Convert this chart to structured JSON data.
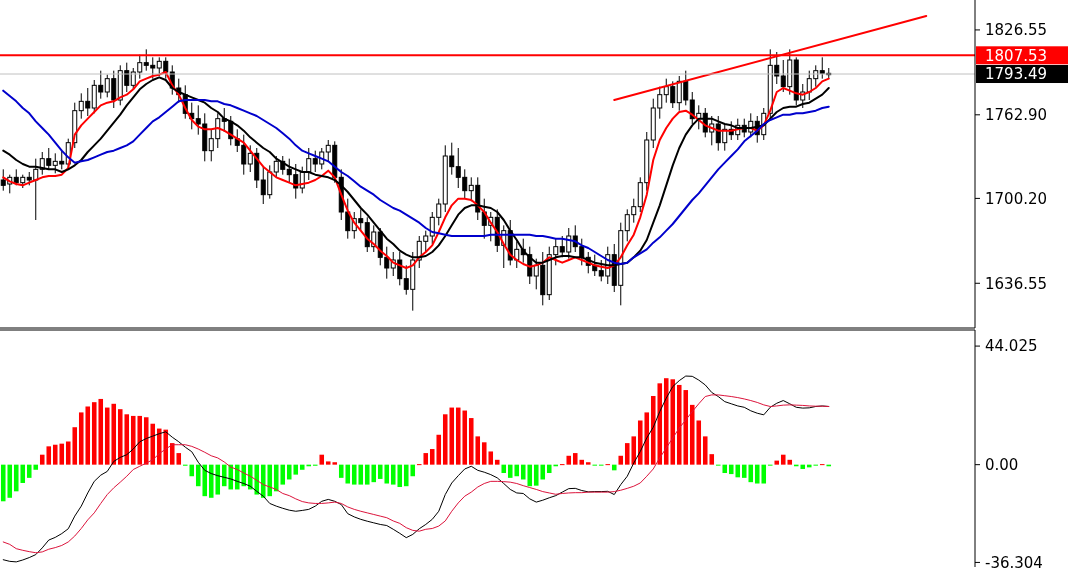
{
  "chart_data": [
    {
      "type": "candlestick",
      "categories": [
        null,
        null,
        null,
        null,
        null,
        null,
        null,
        null,
        null,
        null,
        null,
        null,
        null,
        null,
        null,
        null,
        null,
        null,
        null,
        null,
        null,
        null,
        null,
        null,
        null,
        null,
        null,
        null,
        null,
        null,
        null,
        null,
        null,
        null,
        null,
        null,
        null,
        null,
        null,
        null,
        null,
        null,
        null,
        null,
        null,
        null,
        null,
        null,
        null,
        null,
        null,
        null,
        null,
        null,
        null,
        null,
        null,
        null,
        null,
        null,
        null,
        null,
        null,
        null,
        null,
        null,
        null,
        null,
        null,
        null,
        null,
        null,
        null,
        null,
        null,
        null,
        null,
        null,
        null,
        null,
        null,
        null,
        null,
        null,
        null,
        null,
        null,
        null,
        null,
        null,
        null,
        null,
        null,
        null,
        null,
        null,
        null,
        null,
        null,
        null,
        null,
        null,
        null,
        null,
        null,
        null,
        null,
        null,
        null,
        null,
        null,
        null,
        null,
        null,
        null,
        null,
        null,
        null,
        null,
        null,
        null,
        null,
        null,
        null,
        null,
        null,
        null,
        null,
        null,
        null,
        null,
        null,
        null,
        null,
        null,
        null,
        null,
        null,
        null,
        null,
        null,
        null,
        null,
        null,
        null,
        null,
        null,
        null,
        null,
        null
      ],
      "ohlc": [
        [
          1714,
          1722,
          1706,
          1710
        ],
        [
          1711,
          1718,
          1704,
          1716
        ],
        [
          1716,
          1722,
          1710,
          1712
        ],
        [
          1712,
          1718,
          1708,
          1716
        ],
        [
          1716,
          1720,
          1710,
          1714
        ],
        [
          1714,
          1730,
          1684,
          1722
        ],
        [
          1722,
          1735,
          1718,
          1730
        ],
        [
          1730,
          1738,
          1722,
          1725
        ],
        [
          1725,
          1734,
          1719,
          1728
        ],
        [
          1728,
          1736,
          1722,
          1726
        ],
        [
          1726,
          1745,
          1722,
          1742
        ],
        [
          1742,
          1772,
          1738,
          1766
        ],
        [
          1766,
          1779,
          1760,
          1773
        ],
        [
          1773,
          1783,
          1762,
          1768
        ],
        [
          1768,
          1789,
          1764,
          1785
        ],
        [
          1785,
          1796,
          1775,
          1780
        ],
        [
          1780,
          1793,
          1776,
          1790
        ],
        [
          1790,
          1796,
          1768,
          1774
        ],
        [
          1774,
          1800,
          1770,
          1796
        ],
        [
          1796,
          1802,
          1780,
          1785
        ],
        [
          1785,
          1798,
          1782,
          1795
        ],
        [
          1795,
          1808,
          1790,
          1802
        ],
        [
          1802,
          1812,
          1796,
          1800
        ],
        [
          1800,
          1806,
          1790,
          1798
        ],
        [
          1798,
          1806,
          1792,
          1803
        ],
        [
          1803,
          1806,
          1790,
          1795
        ],
        [
          1795,
          1800,
          1778,
          1783
        ],
        [
          1783,
          1790,
          1772,
          1778
        ],
        [
          1778,
          1785,
          1760,
          1764
        ],
        [
          1764,
          1772,
          1752,
          1760
        ],
        [
          1760,
          1770,
          1748,
          1756
        ],
        [
          1756,
          1764,
          1728,
          1736
        ],
        [
          1736,
          1752,
          1728,
          1745
        ],
        [
          1745,
          1764,
          1738,
          1760
        ],
        [
          1760,
          1768,
          1750,
          1758
        ],
        [
          1758,
          1762,
          1740,
          1745
        ],
        [
          1745,
          1752,
          1735,
          1740
        ],
        [
          1740,
          1748,
          1718,
          1726
        ],
        [
          1726,
          1740,
          1720,
          1734
        ],
        [
          1734,
          1738,
          1708,
          1714
        ],
        [
          1714,
          1724,
          1696,
          1703
        ],
        [
          1703,
          1725,
          1700,
          1720
        ],
        [
          1720,
          1732,
          1716,
          1728
        ],
        [
          1728,
          1732,
          1718,
          1722
        ],
        [
          1722,
          1730,
          1712,
          1718
        ],
        [
          1718,
          1726,
          1700,
          1708
        ],
        [
          1708,
          1724,
          1704,
          1720
        ],
        [
          1720,
          1738,
          1714,
          1730
        ],
        [
          1730,
          1736,
          1720,
          1726
        ],
        [
          1726,
          1738,
          1722,
          1735
        ],
        [
          1735,
          1744,
          1728,
          1740
        ],
        [
          1740,
          1743,
          1712,
          1716
        ],
        [
          1716,
          1722,
          1684,
          1690
        ],
        [
          1690,
          1700,
          1670,
          1676
        ],
        [
          1676,
          1690,
          1670,
          1685
        ],
        [
          1685,
          1692,
          1676,
          1682
        ],
        [
          1682,
          1686,
          1660,
          1664
        ],
        [
          1664,
          1680,
          1660,
          1675
        ],
        [
          1675,
          1678,
          1650,
          1656
        ],
        [
          1656,
          1664,
          1640,
          1648
        ],
        [
          1648,
          1660,
          1642,
          1654
        ],
        [
          1654,
          1660,
          1635,
          1640
        ],
        [
          1640,
          1650,
          1628,
          1632
        ],
        [
          1632,
          1660,
          1616,
          1654
        ],
        [
          1654,
          1672,
          1648,
          1668
        ],
        [
          1668,
          1676,
          1660,
          1672
        ],
        [
          1672,
          1690,
          1666,
          1686
        ],
        [
          1686,
          1700,
          1680,
          1696
        ],
        [
          1696,
          1740,
          1690,
          1732
        ],
        [
          1732,
          1742,
          1718,
          1724
        ],
        [
          1724,
          1738,
          1708,
          1716
        ],
        [
          1716,
          1722,
          1700,
          1706
        ],
        [
          1706,
          1716,
          1698,
          1710
        ],
        [
          1710,
          1716,
          1684,
          1690
        ],
        [
          1690,
          1700,
          1670,
          1680
        ],
        [
          1680,
          1690,
          1668,
          1686
        ],
        [
          1686,
          1692,
          1660,
          1665
        ],
        [
          1665,
          1680,
          1648,
          1676
        ],
        [
          1676,
          1684,
          1650,
          1654
        ],
        [
          1654,
          1668,
          1648,
          1662
        ],
        [
          1662,
          1670,
          1652,
          1658
        ],
        [
          1658,
          1664,
          1636,
          1642
        ],
        [
          1642,
          1655,
          1632,
          1650
        ],
        [
          1650,
          1660,
          1620,
          1628
        ],
        [
          1628,
          1664,
          1624,
          1658
        ],
        [
          1658,
          1670,
          1650,
          1664
        ],
        [
          1664,
          1672,
          1656,
          1660
        ],
        [
          1660,
          1678,
          1655,
          1672
        ],
        [
          1672,
          1680,
          1660,
          1664
        ],
        [
          1664,
          1670,
          1650,
          1656
        ],
        [
          1656,
          1660,
          1644,
          1650
        ],
        [
          1650,
          1658,
          1642,
          1646
        ],
        [
          1646,
          1654,
          1638,
          1642
        ],
        [
          1642,
          1664,
          1636,
          1658
        ],
        [
          1658,
          1666,
          1630,
          1635
        ],
        [
          1635,
          1682,
          1620,
          1676
        ],
        [
          1676,
          1692,
          1668,
          1688
        ],
        [
          1688,
          1700,
          1682,
          1694
        ],
        [
          1694,
          1716,
          1690,
          1712
        ],
        [
          1712,
          1750,
          1706,
          1744
        ],
        [
          1744,
          1775,
          1738,
          1768
        ],
        [
          1768,
          1784,
          1760,
          1778
        ],
        [
          1778,
          1790,
          1772,
          1784
        ],
        [
          1784,
          1788,
          1768,
          1772
        ],
        [
          1772,
          1792,
          1766,
          1788
        ],
        [
          1788,
          1796,
          1770,
          1774
        ],
        [
          1774,
          1780,
          1756,
          1760
        ],
        [
          1760,
          1770,
          1752,
          1764
        ],
        [
          1764,
          1768,
          1746,
          1750
        ],
        [
          1750,
          1762,
          1740,
          1756
        ],
        [
          1756,
          1762,
          1736,
          1742
        ],
        [
          1742,
          1756,
          1736,
          1752
        ],
        [
          1752,
          1758,
          1744,
          1748
        ],
        [
          1748,
          1760,
          1744,
          1755
        ],
        [
          1755,
          1760,
          1746,
          1750
        ],
        [
          1750,
          1764,
          1746,
          1758
        ],
        [
          1758,
          1762,
          1742,
          1748
        ],
        [
          1748,
          1768,
          1744,
          1764
        ],
        [
          1764,
          1812,
          1760,
          1800
        ],
        [
          1800,
          1810,
          1786,
          1792
        ],
        [
          1792,
          1804,
          1780,
          1784
        ],
        [
          1784,
          1812,
          1778,
          1804
        ],
        [
          1804,
          1806,
          1770,
          1774
        ],
        [
          1774,
          1786,
          1768,
          1780
        ],
        [
          1780,
          1796,
          1774,
          1790
        ],
        [
          1790,
          1800,
          1784,
          1796
        ],
        [
          1796,
          1806,
          1790,
          1794
        ],
        [
          1794,
          1798,
          1790,
          1793
        ],
        null,
        null,
        null,
        null,
        null,
        null,
        null,
        null,
        null,
        null,
        null,
        null,
        null,
        null,
        null,
        null,
        null,
        null,
        null,
        null,
        null,
        null
      ],
      "series": [
        {
          "type": "line",
          "color": "#ff0000",
          "values": [
            1716,
            1713,
            1711,
            1710,
            1712,
            1714,
            1716,
            1717,
            1717,
            1718,
            1723,
            1748,
            1755,
            1760,
            1765,
            1770,
            1772,
            1773,
            1776,
            1778,
            1782,
            1788,
            1790,
            1792,
            1793,
            1795,
            1785,
            1778,
            1768,
            1759,
            1754,
            1752,
            1752,
            1753,
            1751,
            1748,
            1745,
            1742,
            1736,
            1730,
            1724,
            1720,
            1716,
            1714,
            1712,
            1710,
            1711,
            1712,
            1714,
            1717,
            1721,
            1716,
            1703,
            1691,
            1682,
            1676,
            1670,
            1666,
            1661,
            1657,
            1652,
            1650,
            1648,
            1650,
            1656,
            1660,
            1665,
            1675,
            1686,
            1695,
            1700,
            1700,
            1699,
            1695,
            1690,
            1682,
            1675,
            1666,
            1658,
            1654,
            1651,
            1649,
            1650,
            1652,
            1656,
            1654,
            1652,
            1654,
            1656,
            1654,
            1652,
            1650,
            1649,
            1648,
            1650,
            1656,
            1665,
            1673,
            1686,
            1703,
            1729,
            1744,
            1753,
            1760,
            1765,
            1766,
            1763,
            1759,
            1755,
            1753,
            1751,
            1751,
            1751,
            1752,
            1753,
            1753,
            1751,
            1755,
            1766,
            1780,
            1783,
            1781,
            1779,
            1778,
            1780,
            1783,
            1788,
            1790,
            null,
            null,
            null,
            null,
            null,
            null,
            null,
            null,
            null,
            null,
            null,
            null,
            null,
            null,
            null,
            null,
            null,
            null,
            null,
            null,
            null,
            null
          ]
        },
        {
          "type": "line",
          "color": "#000000",
          "values": [
            1736,
            1733,
            1729,
            1726,
            1724,
            1724,
            1723,
            1722,
            1722,
            1720,
            1722,
            1725,
            1729,
            1735,
            1740,
            1745,
            1751,
            1757,
            1763,
            1770,
            1776,
            1782,
            1786,
            1789,
            1791,
            1789,
            1783,
            1780,
            1778,
            1776,
            1774,
            1772,
            1768,
            1765,
            1760,
            1758,
            1755,
            1751,
            1746,
            1742,
            1738,
            1735,
            1730,
            1727,
            1724,
            1722,
            1720,
            1720,
            1718,
            1717,
            1716,
            1714,
            1710,
            1705,
            1699,
            1693,
            1688,
            1682,
            1676,
            1670,
            1666,
            1661,
            1658,
            1656,
            1656,
            1657,
            1660,
            1665,
            1672,
            1680,
            1688,
            1693,
            1695,
            1695,
            1694,
            1693,
            1690,
            1684,
            1676,
            1669,
            1661,
            1656,
            1652,
            1652,
            1654,
            1656,
            1657,
            1657,
            1656,
            1656,
            1654,
            1652,
            1651,
            1650,
            1650,
            1651,
            1652,
            1656,
            1661,
            1669,
            1682,
            1695,
            1710,
            1725,
            1738,
            1748,
            1755,
            1760,
            1760,
            1760,
            1758,
            1756,
            1755,
            1753,
            1753,
            1753,
            1754,
            1755,
            1760,
            1765,
            1768,
            1769,
            1769,
            1771,
            1772,
            1775,
            1778,
            1783,
            null,
            null,
            null,
            null,
            null,
            null,
            null,
            null,
            null,
            null,
            null,
            null,
            null,
            null,
            null,
            null,
            null,
            null,
            null,
            null,
            null,
            null
          ]
        },
        {
          "type": "line",
          "color": "#0000cc",
          "values": [
            1781,
            1777,
            1773,
            1768,
            1764,
            1758,
            1753,
            1748,
            1742,
            1736,
            1731,
            1727,
            1728,
            1729,
            1731,
            1733,
            1735,
            1736,
            1738,
            1740,
            1743,
            1748,
            1753,
            1758,
            1761,
            1765,
            1769,
            1773,
            1774,
            1774,
            1774,
            1774,
            1773,
            1773,
            1771,
            1770,
            1768,
            1766,
            1764,
            1762,
            1759,
            1756,
            1753,
            1749,
            1745,
            1740,
            1736,
            1734,
            1732,
            1730,
            1728,
            1724,
            1720,
            1717,
            1713,
            1709,
            1706,
            1703,
            1699,
            1696,
            1693,
            1691,
            1688,
            1685,
            1682,
            1678,
            1675,
            1674,
            1673,
            1672,
            1672,
            1672,
            1672,
            1672,
            1672,
            1673,
            1673,
            1673,
            1673,
            1673,
            1673,
            1673,
            1672,
            1672,
            1671,
            1670,
            1670,
            1669,
            1668,
            1665,
            1663,
            1660,
            1657,
            1654,
            1652,
            1651,
            1652,
            1656,
            1659,
            1662,
            1667,
            1671,
            1676,
            1681,
            1687,
            1693,
            1699,
            1704,
            1710,
            1716,
            1722,
            1727,
            1732,
            1737,
            1743,
            1747,
            1751,
            1756,
            1759,
            1761,
            1763,
            1763,
            1764,
            1764,
            1765,
            1766,
            1768,
            1769,
            null,
            null,
            null,
            null,
            null,
            null,
            null,
            null,
            null,
            null,
            null,
            null,
            null,
            null,
            null,
            null,
            null,
            null,
            null,
            null,
            null,
            null
          ]
        },
        {
          "type": "line",
          "color": "#ff0000",
          "values": [
            null,
            null,
            null,
            null,
            null,
            null,
            null,
            null,
            null,
            null,
            null,
            null,
            null,
            null,
            null,
            null,
            null,
            null,
            null,
            null,
            null,
            null,
            null,
            null,
            null,
            null,
            null,
            null,
            null,
            null,
            null,
            null,
            null,
            null,
            null,
            null,
            null,
            null,
            null,
            null,
            null,
            null,
            null,
            null,
            null,
            null,
            null,
            null,
            null,
            null,
            null,
            null,
            null,
            null,
            null,
            null,
            null,
            null,
            null,
            null,
            null,
            null,
            null,
            null,
            null,
            null,
            null,
            null,
            null,
            null,
            null,
            null,
            null,
            null,
            null,
            null,
            null,
            null,
            null,
            null,
            null,
            null,
            null,
            null,
            null,
            null,
            null,
            null,
            null,
            null,
            null,
            null,
            null,
            null,
            1774,
            null,
            null,
            null,
            null,
            null,
            null,
            null,
            null,
            null,
            null,
            null,
            null,
            null,
            null,
            null,
            null,
            null,
            null,
            null,
            null,
            null,
            null,
            null,
            null,
            null,
            null,
            null,
            null,
            null,
            null,
            null,
            null,
            null,
            null,
            null,
            null,
            null,
            null,
            null,
            null,
            null,
            null,
            null,
            null,
            null,
            null,
            null,
            1837,
            null,
            null,
            null,
            null,
            null,
            null,
            null
          ]
        }
      ],
      "ylim": [
        1603,
        1849
      ],
      "yticks": [
        1826.55,
        {
          "value": 1762.9,
          "label": "1762.90"
        },
        {
          "value": 1700.2,
          "label": "1700.20"
        },
        1636.55
      ],
      "tick_labels": "y",
      "ref_lines": [
        {
          "axis": "y",
          "value": 1807.53,
          "label": "1807.53",
          "color": "#ff0000"
        },
        {
          "axis": "y",
          "value": 1793.49,
          "label": "1793.49",
          "color": "#c0c0c0"
        }
      ]
    },
    {
      "type": "bar",
      "categories": [
        null,
        null,
        null,
        null,
        null,
        null,
        null,
        null,
        null,
        null,
        null,
        null,
        null,
        null,
        null,
        null,
        null,
        null,
        null,
        null,
        null,
        null,
        null,
        null,
        null,
        null,
        null,
        null,
        null,
        null,
        null,
        null,
        null,
        null,
        null,
        null,
        null,
        null,
        null,
        null,
        null,
        null,
        null,
        null,
        null,
        null,
        null,
        null,
        null,
        null,
        null,
        null,
        null,
        null,
        null,
        null,
        null,
        null,
        null,
        null,
        null,
        null,
        null,
        null,
        null,
        null,
        null,
        null,
        null,
        null,
        null,
        null,
        null,
        null,
        null,
        null,
        null,
        null,
        null,
        null,
        null,
        null,
        null,
        null,
        null,
        null,
        null,
        null,
        null,
        null,
        null,
        null,
        null,
        null,
        null,
        null,
        null,
        null,
        null,
        null,
        null,
        null,
        null,
        null,
        null,
        null,
        null,
        null,
        null,
        null,
        null,
        null,
        null,
        null,
        null,
        null,
        null,
        null,
        null,
        null,
        null,
        null,
        null,
        null,
        null,
        null,
        null,
        null,
        null,
        null,
        null,
        null,
        null,
        null,
        null,
        null,
        null,
        null,
        null,
        null,
        null,
        null,
        null,
        null,
        null,
        null,
        null,
        null,
        null,
        null
      ],
      "series": [
        {
          "type": "bar",
          "values": [
            -13.6,
            -12.3,
            -9.9,
            -6.8,
            -4.9,
            -1.9,
            3.7,
            6.8,
            7.4,
            7.8,
            8.6,
            13.9,
            19.4,
            21.6,
            23.2,
            24.4,
            21.2,
            22.6,
            20.6,
            18.7,
            18.1,
            18.1,
            17.6,
            15.2,
            13.4,
            13,
            8,
            4.3,
            -0.4,
            -4.3,
            -8,
            -11.7,
            -12.3,
            -11.1,
            -8,
            -9.2,
            -9.2,
            -8,
            -9.2,
            -11.1,
            -12.3,
            -11.7,
            -9.9,
            -7.4,
            -5.5,
            -3.7,
            -1.9,
            -0.6,
            -0.4,
            3.7,
            1.2,
            0.9,
            -4.9,
            -7,
            -7.4,
            -7.4,
            -7.4,
            -6.5,
            -5.3,
            -7,
            -7.4,
            -8.3,
            -8,
            -4.3,
            0.2,
            4.3,
            5.8,
            11.1,
            18.7,
            21.2,
            21.2,
            20.1,
            17.3,
            10.5,
            8.3,
            4.9,
            1.8,
            -3.1,
            -4.9,
            -4.3,
            -5.5,
            -8,
            -7.8,
            -5.5,
            -3.1,
            -0.6,
            0.2,
            3.3,
            4.3,
            1.8,
            0.9,
            -0.2,
            -0.2,
            0.2,
            -2.1,
            3.3,
            8,
            10.5,
            16.4,
            19.4,
            25.5,
            30.2,
            32.1,
            31.7,
            29.6,
            27.7,
            22.2,
            16.4,
            10.5,
            3.9,
            -0.2,
            -3.1,
            -3.5,
            -4.7,
            -4.9,
            -6.5,
            -7,
            -7,
            -0.2,
            1.5,
            3.7,
            1.8,
            -0.6,
            -1.6,
            -1,
            -0.2,
            0.2,
            -0.6,
            null,
            null,
            null,
            null,
            null,
            null,
            null,
            null,
            null,
            null,
            null,
            null,
            null,
            null,
            null,
            null,
            null,
            null,
            null,
            null,
            null,
            null
          ],
          "colors": [
            "#00ff00",
            "#00ff00",
            "#00ff00",
            "#00ff00",
            "#00ff00",
            "#00ff00",
            "#ff0000",
            "#ff0000",
            "#ff0000",
            "#ff0000",
            "#ff0000",
            "#ff0000",
            "#ff0000",
            "#ff0000",
            "#ff0000",
            "#ff0000",
            "#ff0000",
            "#ff0000",
            "#ff0000",
            "#ff0000",
            "#ff0000",
            "#ff0000",
            "#ff0000",
            "#ff0000",
            "#ff0000",
            "#ff0000",
            "#ff0000",
            "#ff0000",
            "#00ff00",
            "#00ff00",
            "#00ff00",
            "#00ff00",
            "#00ff00",
            "#00ff00",
            "#00ff00",
            "#00ff00",
            "#00ff00",
            "#00ff00",
            "#00ff00",
            "#00ff00",
            "#00ff00",
            "#00ff00",
            "#00ff00",
            "#00ff00",
            "#00ff00",
            "#00ff00",
            "#00ff00",
            "#00ff00",
            "#00ff00",
            "#ff0000",
            "#ff0000",
            "#ff0000",
            "#00ff00",
            "#00ff00",
            "#00ff00",
            "#00ff00",
            "#00ff00",
            "#00ff00",
            "#00ff00",
            "#00ff00",
            "#00ff00",
            "#00ff00",
            "#00ff00",
            "#00ff00",
            "#ff0000",
            "#ff0000",
            "#ff0000",
            "#ff0000",
            "#ff0000",
            "#ff0000",
            "#ff0000",
            "#ff0000",
            "#ff0000",
            "#ff0000",
            "#ff0000",
            "#ff0000",
            "#ff0000",
            "#00ff00",
            "#00ff00",
            "#00ff00",
            "#00ff00",
            "#00ff00",
            "#00ff00",
            "#00ff00",
            "#00ff00",
            "#00ff00",
            "#ff0000",
            "#ff0000",
            "#ff0000",
            "#ff0000",
            "#ff0000",
            "#00ff00",
            "#00ff00",
            "#ff0000",
            "#00ff00",
            "#ff0000",
            "#ff0000",
            "#ff0000",
            "#ff0000",
            "#ff0000",
            "#ff0000",
            "#ff0000",
            "#ff0000",
            "#ff0000",
            "#ff0000",
            "#ff0000",
            "#ff0000",
            "#ff0000",
            "#ff0000",
            "#ff0000",
            "#00ff00",
            "#00ff00",
            "#00ff00",
            "#00ff00",
            "#00ff00",
            "#00ff00",
            "#00ff00",
            "#00ff00",
            "#00ff00",
            "#ff0000",
            "#ff0000",
            "#ff0000",
            "#00ff00",
            "#00ff00",
            "#00ff00",
            "#00ff00",
            "#ff0000",
            "#00ff00",
            null,
            null,
            null,
            null,
            null,
            null,
            null,
            null,
            null,
            null,
            null,
            null,
            null,
            null,
            null,
            null,
            null,
            null,
            null,
            null,
            null,
            null
          ]
        },
        {
          "type": "line",
          "color": "#000000",
          "values": [
            -35.3,
            -35.9,
            -36.1,
            -35.4,
            -34.5,
            -33.4,
            -30.9,
            -28,
            -27,
            -25.6,
            -23.8,
            -19.1,
            -15.4,
            -10.5,
            -6.2,
            -3.9,
            -2.5,
            1.2,
            2.7,
            3.7,
            5.8,
            8.5,
            9.7,
            10.6,
            11.5,
            12.2,
            10.2,
            8.5,
            6.5,
            4.8,
            0.9,
            -2.1,
            -3.3,
            -4.1,
            -4.7,
            -5.3,
            -6.2,
            -7,
            -8,
            -9.9,
            -11.7,
            -14.4,
            -15.4,
            -16.2,
            -16.9,
            -17.3,
            -17,
            -16.6,
            -15.4,
            -13.6,
            -12.9,
            -13.6,
            -14.8,
            -18.2,
            -19.4,
            -20.3,
            -21,
            -21.6,
            -22.2,
            -22.6,
            -24,
            -25.5,
            -27.1,
            -25.9,
            -23.8,
            -22.2,
            -20.3,
            -17.3,
            -11.1,
            -6.8,
            -4.1,
            -1.6,
            -0.6,
            -2.1,
            -2.8,
            -3.7,
            -4.9,
            -7,
            -9.2,
            -10.5,
            -10.7,
            -12.7,
            -13.9,
            -13.2,
            -12.3,
            -11.5,
            -10.2,
            -8.9,
            -8.8,
            -9.6,
            -10.1,
            -10,
            -10,
            -9.9,
            -11.1,
            -7.4,
            -4.3,
            0.6,
            4.9,
            9.9,
            13.9,
            19.7,
            24.7,
            29,
            31.2,
            32.9,
            32.8,
            31.4,
            29.6,
            26.8,
            25.3,
            23.4,
            22.6,
            21.8,
            21.3,
            20,
            19.1,
            18.5,
            21.3,
            22.8,
            23.8,
            22.6,
            21.3,
            21,
            21.1,
            21.6,
            21.8,
            21.6,
            null,
            null,
            null,
            null,
            null,
            null,
            null,
            null,
            null,
            null,
            null,
            null,
            null,
            null,
            null,
            null,
            null,
            null,
            null,
            null,
            null,
            null
          ]
        },
        {
          "type": "line",
          "color": "#dc143c",
          "values": [
            -28.7,
            -29.6,
            -31.2,
            -31.8,
            -32.3,
            -32.7,
            -32.4,
            -31.4,
            -30.8,
            -30,
            -28.7,
            -26.5,
            -23.7,
            -20.5,
            -17.9,
            -14.4,
            -11.1,
            -8.6,
            -6.5,
            -4.3,
            -1.8,
            -0.6,
            0.6,
            1.8,
            4.1,
            5.8,
            7.4,
            7.4,
            7.4,
            6.8,
            5.8,
            4.6,
            3.3,
            2.5,
            1,
            -0.9,
            -1.8,
            -3.1,
            -4.3,
            -5.8,
            -7.4,
            -8.3,
            -9.2,
            -10.7,
            -11.5,
            -12.7,
            -13.7,
            -14.2,
            -14.4,
            -14.4,
            -14.2,
            -13.9,
            -14.4,
            -15.7,
            -16.6,
            -17.3,
            -17.9,
            -18.5,
            -19.1,
            -19.7,
            -20.9,
            -21.8,
            -23.4,
            -24.4,
            -24.7,
            -24,
            -23.7,
            -22.8,
            -20.9,
            -17.3,
            -14.2,
            -11.7,
            -10.2,
            -8.3,
            -7,
            -6.2,
            -6.2,
            -6.3,
            -6.5,
            -7,
            -7.8,
            -8.5,
            -9.2,
            -10,
            -10.5,
            -11,
            -10.7,
            -10.5,
            -10.4,
            -10.4,
            -10.2,
            -10.2,
            -10.2,
            -10.2,
            -10,
            -9.5,
            -8.8,
            -8,
            -6.8,
            -4.3,
            -1.6,
            2.5,
            6.2,
            9.9,
            13.6,
            16.6,
            19.7,
            22.6,
            25.3,
            25.9,
            25.9,
            25.6,
            25.3,
            24.9,
            24.4,
            23.8,
            23.1,
            22.2,
            21.6,
            21.8,
            22.1,
            22.2,
            22.1,
            22,
            21.8,
            21.7,
            21.7,
            21.6,
            null,
            null,
            null,
            null,
            null,
            null,
            null,
            null,
            null,
            null,
            null,
            null,
            null,
            null,
            null,
            null,
            null,
            null,
            null,
            null,
            null,
            null
          ]
        }
      ],
      "ylim": [
        -38,
        50
      ],
      "yticks": [
        44.025,
        {
          "value": 0,
          "label": "0.00"
        },
        -36.304
      ],
      "tick_labels": "y"
    }
  ]
}
